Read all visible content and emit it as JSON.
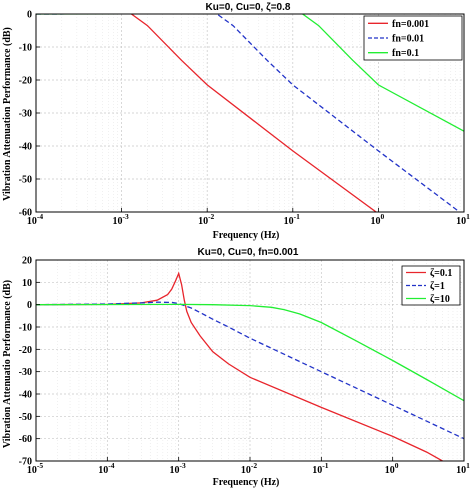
{
  "chart_data": [
    {
      "type": "line",
      "title": "Ku=0, Cu=0, ζ=0.8",
      "xlabel": "Frequency (Hz)",
      "ylabel": "Vibration Attenuation Performance (dB)",
      "xscale": "log",
      "xlim": [
        0.0001,
        10
      ],
      "ylim": [
        -60,
        0
      ],
      "grid": true,
      "legend_position": "top-right",
      "xticks": [
        {
          "base": "10",
          "exp": "-4"
        },
        {
          "base": "10",
          "exp": "-3"
        },
        {
          "base": "10",
          "exp": "-2"
        },
        {
          "base": "10",
          "exp": "-1"
        },
        {
          "base": "10",
          "exp": "0"
        },
        {
          "base": "10",
          "exp": "1"
        }
      ],
      "yticks": [
        "-60",
        "-50",
        "-40",
        "-30",
        "-20",
        "-10",
        "0"
      ],
      "series": [
        {
          "name": "fn=0.001",
          "color": "#e8252c",
          "dash": "solid",
          "points": [
            [
              0.0001,
              0.1
            ],
            [
              0.0002,
              0.4
            ],
            [
              0.0004,
              1.2
            ],
            [
              0.0007,
              2.1
            ],
            [
              0.001,
              1.2
            ],
            [
              0.0013,
              0
            ],
            [
              0.002,
              -3.5
            ],
            [
              0.005,
              -14
            ],
            [
              0.01,
              -21.5
            ],
            [
              0.1,
              -41.5
            ],
            [
              1,
              -60.5
            ],
            [
              2,
              -67
            ]
          ]
        },
        {
          "name": "fn=0.01",
          "color": "#2233c8",
          "dash": "dashed",
          "points": [
            [
              0.0001,
              0
            ],
            [
              0.001,
              0.1
            ],
            [
              0.002,
              0.4
            ],
            [
              0.004,
              1.2
            ],
            [
              0.007,
              2.1
            ],
            [
              0.01,
              1.2
            ],
            [
              0.013,
              0
            ],
            [
              0.02,
              -3.5
            ],
            [
              0.05,
              -14
            ],
            [
              0.1,
              -21.5
            ],
            [
              1,
              -41.5
            ],
            [
              10,
              -61
            ]
          ]
        },
        {
          "name": "fn=0.1",
          "color": "#22ee33",
          "dash": "solid",
          "points": [
            [
              0.0001,
              0
            ],
            [
              0.01,
              0.1
            ],
            [
              0.02,
              0.4
            ],
            [
              0.04,
              1.2
            ],
            [
              0.07,
              2.1
            ],
            [
              0.1,
              1.2
            ],
            [
              0.13,
              0
            ],
            [
              0.2,
              -3.5
            ],
            [
              0.5,
              -14
            ],
            [
              1,
              -21.5
            ],
            [
              10,
              -35.5
            ]
          ]
        }
      ]
    },
    {
      "type": "line",
      "title": "Ku=0, Cu=0, fn=0.001",
      "xlabel": "Frequency (Hz)",
      "ylabel": "Vibration Attenuatio Performance (dB)",
      "xscale": "log",
      "xlim": [
        1e-05,
        10
      ],
      "ylim": [
        -70,
        20
      ],
      "grid": true,
      "legend_position": "top-right",
      "xticks": [
        {
          "base": "10",
          "exp": "-5"
        },
        {
          "base": "10",
          "exp": "-4"
        },
        {
          "base": "10",
          "exp": "-3"
        },
        {
          "base": "10",
          "exp": "-2"
        },
        {
          "base": "10",
          "exp": "-1"
        },
        {
          "base": "10",
          "exp": "0"
        },
        {
          "base": "10",
          "exp": "1"
        }
      ],
      "yticks": [
        "-70",
        "-60",
        "-50",
        "-40",
        "-30",
        "-20",
        "-10",
        "0",
        "10",
        "20"
      ],
      "series": [
        {
          "name": "ζ=0.1",
          "color": "#e8252c",
          "dash": "solid",
          "points": [
            [
              1e-05,
              0
            ],
            [
              0.0001,
              0.1
            ],
            [
              0.0003,
              0.8
            ],
            [
              0.0005,
              2
            ],
            [
              0.0007,
              4.5
            ],
            [
              0.0008,
              7
            ],
            [
              0.0009,
              10.5
            ],
            [
              0.001,
              14
            ],
            [
              0.0011,
              9
            ],
            [
              0.0012,
              2
            ],
            [
              0.0013,
              -3
            ],
            [
              0.0015,
              -8
            ],
            [
              0.002,
              -14
            ],
            [
              0.003,
              -21
            ],
            [
              0.005,
              -26.5
            ],
            [
              0.01,
              -32.5
            ],
            [
              0.1,
              -46
            ],
            [
              1,
              -59
            ],
            [
              3,
              -66
            ],
            [
              5,
              -70
            ]
          ]
        },
        {
          "name": "ζ=1",
          "color": "#2233c8",
          "dash": "dashed",
          "points": [
            [
              1e-05,
              0
            ],
            [
              0.0001,
              0.3
            ],
            [
              0.0003,
              0.8
            ],
            [
              0.0005,
              1.1
            ],
            [
              0.0008,
              1.0
            ],
            [
              0.001,
              0.5
            ],
            [
              0.0015,
              -1.5
            ],
            [
              0.002,
              -3.5
            ],
            [
              0.003,
              -6.5
            ],
            [
              0.005,
              -10
            ],
            [
              0.01,
              -15
            ],
            [
              0.1,
              -30
            ],
            [
              1,
              -45
            ],
            [
              10,
              -60
            ]
          ]
        },
        {
          "name": "ζ=10",
          "color": "#22ee33",
          "dash": "solid",
          "points": [
            [
              1e-05,
              0
            ],
            [
              0.001,
              0.1
            ],
            [
              0.003,
              0
            ],
            [
              0.01,
              -0.4
            ],
            [
              0.02,
              -1.2
            ],
            [
              0.03,
              -2.2
            ],
            [
              0.05,
              -4.2
            ],
            [
              0.1,
              -8
            ],
            [
              0.3,
              -16
            ],
            [
              1,
              -25
            ],
            [
              3,
              -33.5
            ],
            [
              10,
              -43
            ]
          ]
        }
      ]
    }
  ]
}
